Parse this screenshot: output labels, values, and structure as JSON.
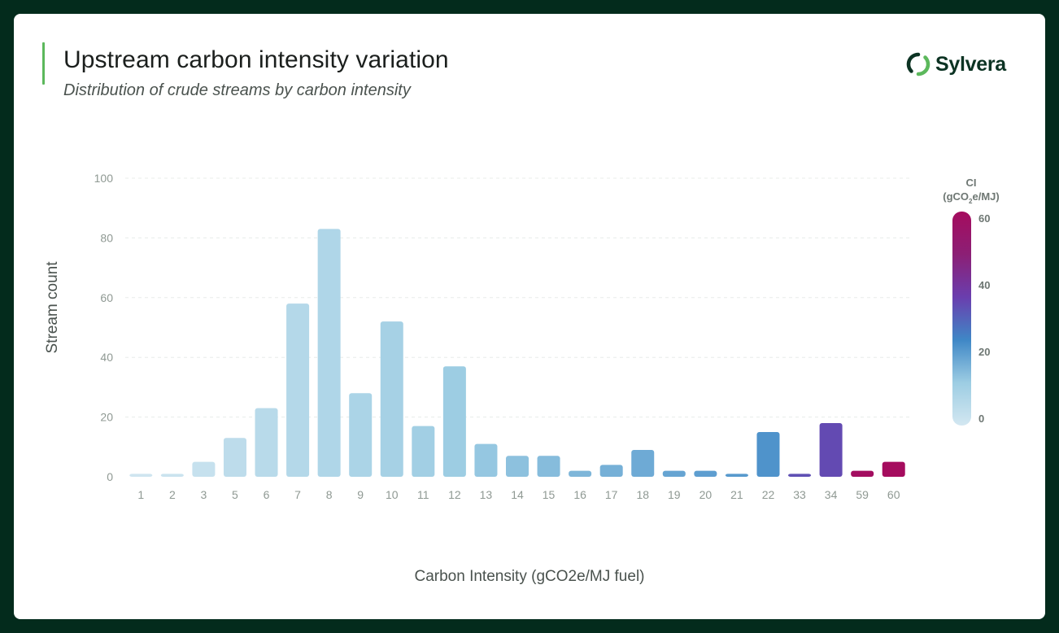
{
  "header": {
    "title": "Upstream carbon intensity variation",
    "subtitle": "Distribution of crude streams by carbon intensity"
  },
  "brand": {
    "name": "Sylvera",
    "icon": "sylvera-logo-icon",
    "accent_color": "#5cb85c",
    "background_color": "#032b1c"
  },
  "chart_data": {
    "type": "bar",
    "title": "Upstream carbon intensity variation",
    "subtitle": "Distribution of crude streams by carbon intensity",
    "xlabel": "Carbon Intensity (gCO2e/MJ fuel)",
    "ylabel": "Stream count",
    "categories": [
      "1",
      "2",
      "3",
      "5",
      "6",
      "7",
      "8",
      "9",
      "10",
      "11",
      "12",
      "13",
      "14",
      "15",
      "16",
      "17",
      "18",
      "19",
      "20",
      "21",
      "22",
      "33",
      "34",
      "59",
      "60"
    ],
    "values": [
      1,
      1,
      5,
      13,
      23,
      58,
      83,
      28,
      52,
      17,
      37,
      11,
      7,
      7,
      2,
      4,
      9,
      2,
      2,
      1,
      15,
      1,
      18,
      2,
      5
    ],
    "ylim": [
      0,
      100
    ],
    "yticks": [
      0,
      20,
      40,
      60,
      80,
      100
    ],
    "grid": true,
    "legend": {
      "type": "colorbar",
      "placement": "right",
      "title_line1": "CI",
      "title_line2_prefix": "(gCO",
      "title_line2_sub": "2",
      "title_line2_suffix": "e/MJ)",
      "range": [
        0,
        60
      ],
      "ticks": [
        0,
        20,
        40,
        60
      ],
      "colors": [
        "#d3e7f1",
        "#9dcde3",
        "#3f87c6",
        "#6a3eae",
        "#8c1f75",
        "#a50c5e"
      ]
    }
  }
}
